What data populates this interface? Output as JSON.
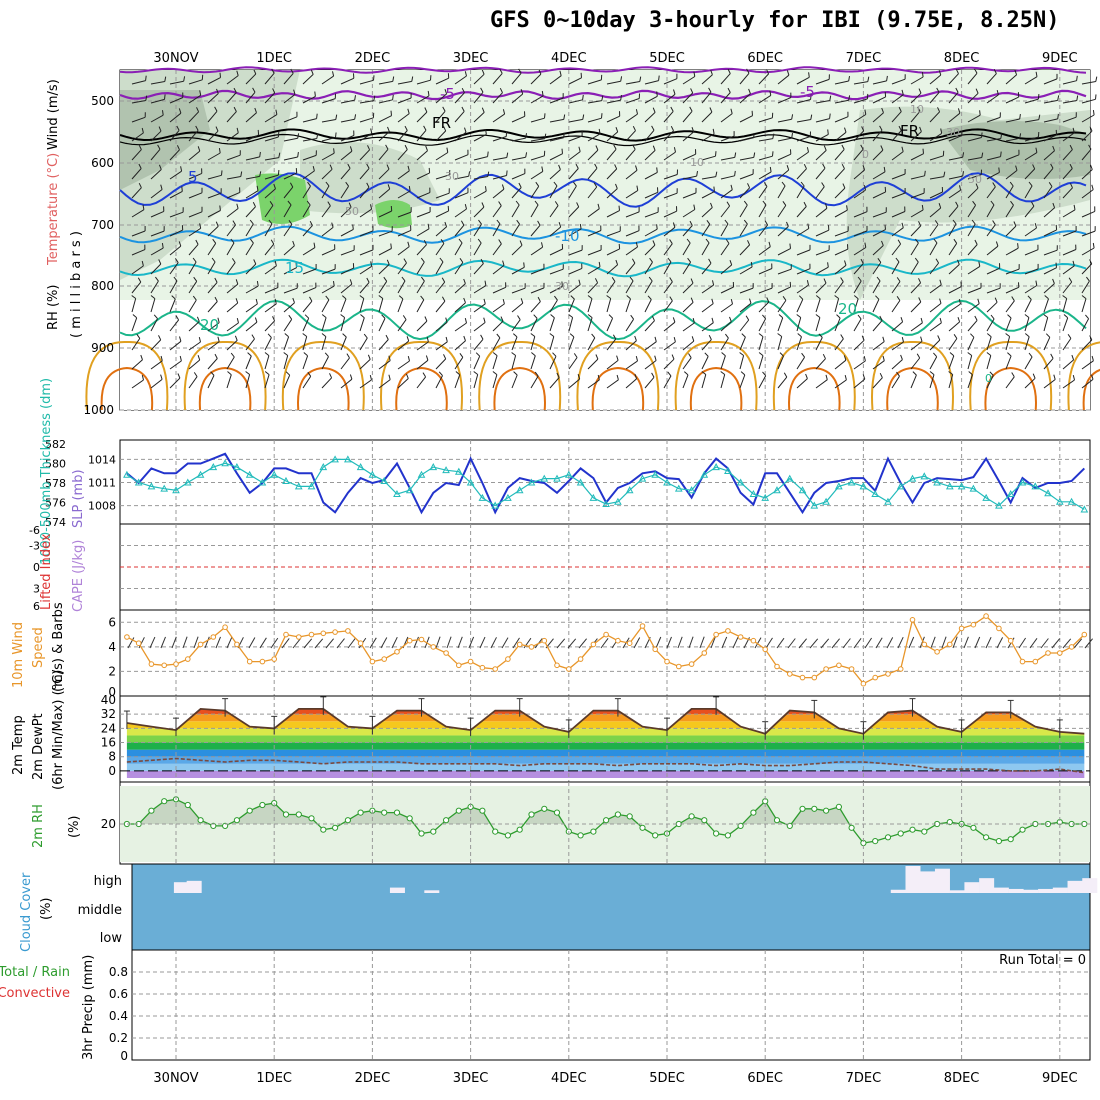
{
  "title": "GFS 0~10day 3-hourly for IBI (9.75E, 8.25N)",
  "colors": {
    "rh_fill": "#7bd36b",
    "rh_light": "#e8f4e6",
    "rh_mid": "#cdddcb",
    "rh_dark": "#9fb39c",
    "temp_m5": "#8a1fb5",
    "temp_fr": "#000000",
    "temp_5": "#1e3fd6",
    "temp_10": "#1c93e0",
    "temp_15": "#19b7c8",
    "temp_20": "#1bb58a",
    "temp_warm": "#e0a020",
    "temp_hot": "#e07010",
    "thickness": "#2233cc",
    "slp": "#22bbbb",
    "lifted_ref": "#dd3333",
    "wind": "#e8962a",
    "temp_line": "#5a3a2a",
    "dewpt": "#7a4a40",
    "rh_line": "#2e9c2e",
    "rh_area": "#e6f2e3",
    "cloud": "#6aaed6",
    "cloud_bar": "#f4eef8"
  },
  "x_axis": {
    "top_labels": [
      "30NOV",
      "1DEC",
      "2DEC",
      "3DEC",
      "4DEC",
      "5DEC",
      "6DEC",
      "7DEC",
      "8DEC",
      "9DEC"
    ],
    "bottom_labels": [
      "30NOV",
      "1DEC",
      "2DEC",
      "3DEC",
      "4DEC",
      "5DEC",
      "6DEC",
      "7DEC",
      "8DEC",
      "9DEC"
    ]
  },
  "panels": {
    "upper_air": {
      "ylabel_rh": "RH (%)",
      "ylabel_temp": "Temperature (°C)",
      "ylabel_wind": "Wind (m/s)",
      "ylabel_units": "( m i l l i b a r s )",
      "yticks": [
        "500",
        "600",
        "700",
        "800",
        "900",
        "1000"
      ],
      "contour_labels": [
        "-5",
        "-5",
        "FR",
        "FR",
        "5",
        "-10",
        "15",
        "20",
        "20",
        "30",
        "50",
        "30",
        "30",
        "10",
        "10",
        "50",
        "0",
        "0"
      ]
    },
    "thickness": {
      "ylabel_left": "1000-500mb Thickness (dm)",
      "ylabel_right": "SLP (mb)",
      "yticks_left": [
        "582",
        "580",
        "578",
        "576",
        "574"
      ],
      "yticks_right": [
        "1014",
        "1011",
        "1008"
      ]
    },
    "stability": {
      "ylabel_left": "Lifted Index",
      "ylabel_right": "CAPE (J/kg)",
      "yticks": [
        "-6",
        "-3",
        "0",
        "3",
        "6"
      ]
    },
    "wind10m": {
      "ylabel_1": "10m Wind",
      "ylabel_2": "Speed",
      "ylabel_3": "(m/s) & Barbs",
      "yticks": [
        "6",
        "4",
        "2",
        "0"
      ]
    },
    "temp2m": {
      "ylabel_1": "2m Temp",
      "ylabel_2": "2m DewPt",
      "ylabel_3": "(6hr Min/Max) (°C)",
      "yticks": [
        "40",
        "32",
        "24",
        "16",
        "8",
        "0"
      ]
    },
    "rh2m": {
      "ylabel": "2m RH",
      "unit": "(%)",
      "yticks": [
        "20"
      ]
    },
    "cloud": {
      "ylabel_1": "Cloud Cover",
      "ylabel_2": "(%)",
      "levels": [
        "high",
        "middle",
        "low"
      ]
    },
    "precip": {
      "ylabel_1": "Total / Rain",
      "ylabel_2": "Convective",
      "ylabel_3": "3hr Precip (mm)",
      "yticks": [
        "0.8",
        "0.6",
        "0.4",
        "0.2",
        "0"
      ],
      "run_total": "Run Total = 0"
    }
  },
  "chart_data": [
    {
      "type": "line",
      "name": "1000-500mb Thickness (dm)",
      "x_unit": "days from 30NOV 00Z",
      "ylim": [
        574,
        582
      ],
      "x": [
        -0.5,
        -0.38,
        -0.25,
        -0.12,
        0,
        0.12,
        0.25,
        0.38,
        0.5,
        0.62,
        0.75,
        0.88,
        1.0,
        1.12,
        1.25,
        1.38,
        1.5,
        1.62,
        1.75,
        1.88,
        2.0,
        2.12,
        2.25,
        2.38,
        2.5,
        2.62,
        2.75,
        2.88,
        3.0,
        3.12,
        3.25,
        3.38,
        3.5,
        3.62,
        3.75,
        3.88,
        4.0,
        4.12,
        4.25,
        4.38,
        4.5,
        4.62,
        4.75,
        4.88,
        5.0,
        5.12,
        5.25,
        5.38,
        5.5,
        5.62,
        5.75,
        5.88,
        6.0,
        6.12,
        6.25,
        6.38,
        6.5,
        6.62,
        6.75,
        6.88,
        7.0,
        7.12,
        7.25,
        7.38,
        7.5,
        7.62,
        7.75,
        7.88,
        8.0,
        8.12,
        8.25,
        8.38,
        8.5,
        8.62,
        8.75,
        8.88,
        9.0,
        9.12,
        9.25
      ],
      "values": [
        579,
        578,
        579.5,
        579,
        579,
        580,
        580,
        580.5,
        581,
        579,
        577,
        578,
        579.5,
        579.5,
        579,
        579,
        576,
        575,
        577,
        578.5,
        578,
        578.3,
        580,
        577.5,
        575,
        577,
        578,
        577.8,
        580.5,
        578,
        575,
        577.5,
        578.5,
        578.2,
        578,
        577,
        578.2,
        579.5,
        578.5,
        576,
        577.5,
        578,
        579,
        579.2,
        578.5,
        578.4,
        576.5,
        579,
        580.5,
        579.5,
        577,
        575.8,
        579,
        579,
        577,
        575,
        577,
        578,
        578.2,
        578.5,
        578.5,
        577.2,
        580.5,
        578,
        576,
        578,
        578.5,
        578.4,
        578.3,
        578.6,
        580.5,
        578.2,
        576,
        578.5,
        577.5,
        578,
        578,
        578.2,
        579.5
      ]
    },
    {
      "type": "line",
      "name": "SLP (mb)",
      "x_unit": "days from 30NOV 00Z",
      "ylim": [
        1006,
        1016
      ],
      "x": [
        -0.5,
        -0.38,
        -0.25,
        -0.12,
        0,
        0.12,
        0.25,
        0.38,
        0.5,
        0.62,
        0.75,
        0.88,
        1.0,
        1.12,
        1.25,
        1.38,
        1.5,
        1.62,
        1.75,
        1.88,
        2.0,
        2.12,
        2.25,
        2.38,
        2.5,
        2.62,
        2.75,
        2.88,
        3.0,
        3.12,
        3.25,
        3.38,
        3.5,
        3.62,
        3.75,
        3.88,
        4.0,
        4.12,
        4.25,
        4.38,
        4.5,
        4.62,
        4.75,
        4.88,
        5.0,
        5.12,
        5.25,
        5.38,
        5.5,
        5.62,
        5.75,
        5.88,
        6.0,
        6.12,
        6.25,
        6.38,
        6.5,
        6.62,
        6.75,
        6.88,
        7.0,
        7.12,
        7.25,
        7.38,
        7.5,
        7.62,
        7.75,
        7.88,
        8.0,
        8.12,
        8.25,
        8.38,
        8.5,
        8.62,
        8.75,
        8.88,
        9.0,
        9.12,
        9.25
      ],
      "values": [
        1012,
        1011,
        1010.5,
        1010.2,
        1010,
        1011,
        1012,
        1013,
        1013.5,
        1013,
        1012,
        1011,
        1012,
        1011.2,
        1010.5,
        1010.5,
        1013,
        1014,
        1014,
        1013,
        1012,
        1011.2,
        1009.5,
        1010,
        1012,
        1013,
        1012.6,
        1012.4,
        1011,
        1009,
        1008,
        1009,
        1010,
        1011,
        1011.5,
        1011.5,
        1012,
        1011,
        1009,
        1008.2,
        1008.5,
        1010,
        1011.5,
        1012,
        1011,
        1010.2,
        1010,
        1012,
        1013,
        1012.5,
        1011,
        1009.5,
        1009,
        1010,
        1011.5,
        1010,
        1008,
        1008.5,
        1010.5,
        1011,
        1010.5,
        1009.5,
        1008.5,
        1010.5,
        1011.5,
        1011.8,
        1011,
        1010.5,
        1010.5,
        1010.2,
        1009,
        1008,
        1009.5,
        1011,
        1010.5,
        1009.6,
        1008.5,
        1008.5,
        1007.5
      ]
    },
    {
      "type": "line",
      "name": "10m Wind Speed (m/s)",
      "x_unit": "days from 30NOV 00Z",
      "ylim": [
        0,
        7
      ],
      "x": [
        -0.5,
        -0.38,
        -0.25,
        -0.12,
        0,
        0.12,
        0.25,
        0.38,
        0.5,
        0.62,
        0.75,
        0.88,
        1.0,
        1.12,
        1.25,
        1.38,
        1.5,
        1.62,
        1.75,
        1.88,
        2.0,
        2.12,
        2.25,
        2.38,
        2.5,
        2.62,
        2.75,
        2.88,
        3.0,
        3.12,
        3.25,
        3.38,
        3.5,
        3.62,
        3.75,
        3.88,
        4.0,
        4.12,
        4.25,
        4.38,
        4.5,
        4.62,
        4.75,
        4.88,
        5.0,
        5.12,
        5.25,
        5.38,
        5.5,
        5.62,
        5.75,
        5.88,
        6.0,
        6.12,
        6.25,
        6.38,
        6.5,
        6.62,
        6.75,
        6.88,
        7.0,
        7.12,
        7.25,
        7.38,
        7.5,
        7.62,
        7.75,
        7.88,
        8.0,
        8.12,
        8.25,
        8.38,
        8.5,
        8.62,
        8.75,
        8.88,
        9.0,
        9.12,
        9.25
      ],
      "values": [
        4.8,
        4.3,
        2.6,
        2.5,
        2.6,
        3.0,
        4.2,
        4.8,
        5.6,
        4.2,
        2.8,
        2.8,
        3.0,
        5.0,
        4.8,
        5.0,
        5.1,
        5.2,
        5.3,
        4.3,
        2.8,
        3.0,
        3.6,
        4.5,
        4.6,
        4.0,
        3.5,
        2.5,
        2.8,
        2.3,
        2.2,
        3.0,
        4.2,
        4.0,
        4.5,
        2.5,
        2.2,
        3.0,
        4.2,
        5.0,
        4.5,
        4.3,
        5.7,
        3.8,
        2.8,
        2.4,
        2.6,
        3.5,
        5.0,
        5.3,
        4.8,
        4.5,
        3.8,
        2.4,
        1.8,
        1.5,
        1.5,
        2.2,
        2.5,
        2.2,
        1.0,
        1.5,
        1.8,
        2.2,
        6.2,
        4.2,
        3.6,
        4.2,
        5.5,
        5.8,
        6.5,
        5.5,
        4.5,
        2.8,
        2.8,
        3.5,
        3.5,
        4.0,
        5.0
      ]
    },
    {
      "type": "area",
      "name": "2m Temp (°C)",
      "x_unit": "days from 30NOV 00Z",
      "ylim": [
        -4,
        40
      ],
      "x": [
        -0.5,
        -0.25,
        0,
        0.25,
        0.5,
        0.75,
        1.0,
        1.25,
        1.5,
        1.75,
        2.0,
        2.25,
        2.5,
        2.75,
        3.0,
        3.25,
        3.5,
        3.75,
        4.0,
        4.25,
        4.5,
        4.75,
        5.0,
        5.25,
        5.5,
        5.75,
        6.0,
        6.25,
        6.5,
        6.75,
        7.0,
        7.25,
        7.5,
        7.75,
        8.0,
        8.25,
        8.5,
        8.75,
        9.0,
        9.25
      ],
      "values": [
        27,
        25,
        23,
        35,
        34,
        25,
        24,
        35,
        35,
        25,
        24,
        34,
        34,
        25,
        23,
        34,
        34,
        25,
        22,
        34,
        34,
        25,
        23,
        35,
        35,
        25,
        21,
        34,
        33,
        24,
        21,
        33,
        34,
        25,
        22,
        33,
        33,
        25,
        22,
        21
      ]
    },
    {
      "type": "line",
      "name": "2m DewPt (°C)",
      "x_unit": "days from 30NOV 00Z",
      "ylim": [
        -4,
        40
      ],
      "x": [
        -0.5,
        -0.25,
        0,
        0.25,
        0.5,
        0.75,
        1.0,
        1.25,
        1.5,
        1.75,
        2.0,
        2.25,
        2.5,
        2.75,
        3.0,
        3.25,
        3.5,
        3.75,
        4.0,
        4.25,
        4.5,
        4.75,
        5.0,
        5.25,
        5.5,
        5.75,
        6.0,
        6.25,
        6.5,
        6.75,
        7.0,
        7.25,
        7.5,
        7.75,
        8.0,
        8.25,
        8.5,
        8.75,
        9.0,
        9.25
      ],
      "values": [
        5,
        6,
        7,
        6,
        5,
        6,
        6,
        5,
        4,
        5,
        5,
        5,
        4,
        4,
        4,
        4,
        3,
        4,
        4,
        4,
        3,
        4,
        4,
        4,
        3,
        4,
        3,
        3,
        4,
        5,
        5,
        4,
        3,
        1,
        1,
        1,
        0,
        0,
        1,
        -1
      ]
    },
    {
      "type": "area",
      "name": "2m RH (%)",
      "x_unit": "days from 30NOV 00Z",
      "ylim": [
        0,
        40
      ],
      "x": [
        -0.5,
        -0.38,
        -0.25,
        -0.12,
        0,
        0.12,
        0.25,
        0.38,
        0.5,
        0.62,
        0.75,
        0.88,
        1.0,
        1.12,
        1.25,
        1.38,
        1.5,
        1.62,
        1.75,
        1.88,
        2.0,
        2.12,
        2.25,
        2.38,
        2.5,
        2.62,
        2.75,
        2.88,
        3.0,
        3.12,
        3.25,
        3.38,
        3.5,
        3.62,
        3.75,
        3.88,
        4.0,
        4.12,
        4.25,
        4.38,
        4.5,
        4.62,
        4.75,
        4.88,
        5.0,
        5.12,
        5.25,
        5.38,
        5.5,
        5.62,
        5.75,
        5.88,
        6.0,
        6.12,
        6.25,
        6.38,
        6.5,
        6.62,
        6.75,
        6.88,
        7.0,
        7.12,
        7.25,
        7.38,
        7.5,
        7.62,
        7.75,
        7.88,
        8.0,
        8.12,
        8.25,
        8.38,
        8.5,
        8.62,
        8.75,
        8.88,
        9.0,
        9.12,
        9.25
      ],
      "values": [
        20,
        20,
        27,
        32,
        33,
        30,
        22,
        19,
        19,
        22,
        27,
        30,
        31,
        25,
        25,
        23,
        17,
        18,
        22,
        26,
        27,
        26,
        26,
        23,
        15,
        16,
        22,
        27,
        29,
        27,
        16,
        14,
        17,
        25,
        28,
        26,
        16,
        14,
        16,
        22,
        25,
        24,
        18,
        14,
        15,
        20,
        24,
        22,
        15,
        14,
        19,
        26,
        32,
        22,
        19,
        28,
        28,
        27,
        29,
        18,
        10,
        11,
        13,
        15,
        17,
        16,
        20,
        21,
        20,
        18,
        13,
        11,
        12,
        17,
        20,
        20,
        21,
        20,
        20
      ]
    },
    {
      "type": "bar",
      "name": "High Cloud Cover (%)",
      "x_unit": "days from 30NOV 00Z",
      "ylim": [
        0,
        100
      ],
      "x": [
        0.05,
        0.18,
        2.25,
        2.6,
        7.35,
        7.5,
        7.65,
        7.8,
        7.95,
        8.1,
        8.25,
        8.4,
        8.55,
        8.7,
        8.85,
        9.0,
        9.15,
        9.3
      ],
      "values": [
        40,
        45,
        20,
        10,
        12,
        100,
        80,
        90,
        10,
        40,
        55,
        20,
        15,
        12,
        15,
        20,
        45,
        55
      ]
    },
    {
      "type": "bar",
      "name": "3hr Precip (mm)",
      "x_unit": "days from 30NOV 00Z",
      "ylim": [
        0,
        1
      ],
      "x": [],
      "values": []
    }
  ]
}
